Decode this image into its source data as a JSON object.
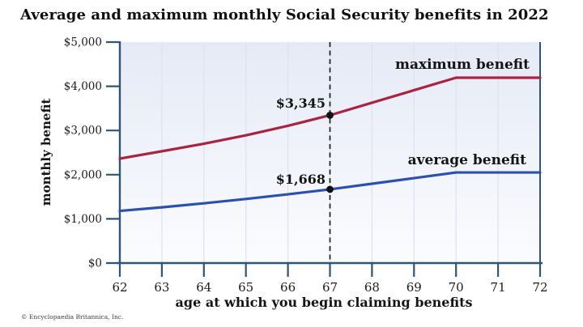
{
  "title": "Average and maximum monthly Social Security benefits in 2022",
  "credit": "© Encyclopaedia Britannica, Inc.",
  "colors": {
    "max_line": "#a82440",
    "avg_line": "#2d50ae",
    "axis": "#2f5574",
    "gridline": "#dce2f0",
    "plot_bg_top": "#e5eaf6",
    "plot_bg_bottom": "#fbfcfe",
    "dot": "#101010",
    "reference_line": "#1d1d1d"
  },
  "chart_data": {
    "type": "line",
    "title": "Average and maximum monthly Social Security benefits in 2022",
    "xlabel": "age at which you begin claiming benefits",
    "ylabel": "monthly benefit",
    "xlim": [
      62,
      72
    ],
    "ylim": [
      0,
      5000
    ],
    "grid": "vertical-only",
    "legend_position": "inline",
    "x": [
      62,
      63,
      64,
      65,
      66,
      67,
      68,
      69,
      70,
      71,
      72
    ],
    "x_tick_labels": [
      "62",
      "63",
      "64",
      "65",
      "66",
      "67",
      "68",
      "69",
      "70",
      "71",
      "72"
    ],
    "y_ticks": [
      {
        "value": 0,
        "label": "$0"
      },
      {
        "value": 1000,
        "label": "$1,000"
      },
      {
        "value": 2000,
        "label": "$2,000"
      },
      {
        "value": 3000,
        "label": "$3,000"
      },
      {
        "value": 4000,
        "label": "$4,000"
      },
      {
        "value": 5000,
        "label": "$5,000"
      }
    ],
    "series": [
      {
        "name": "maximum benefit",
        "color": "#a82440",
        "values": [
          2364,
          2530,
          2700,
          2890,
          3105,
          3345,
          3628,
          3911,
          4194,
          4194,
          4194
        ]
      },
      {
        "name": "average benefit",
        "color": "#2d50ae",
        "values": [
          1180,
          1262,
          1352,
          1450,
          1556,
          1668,
          1795,
          1922,
          2050,
          2050,
          2050
        ]
      }
    ],
    "annotations": [
      {
        "age": 67,
        "series": "maximum benefit",
        "value": 3345,
        "label": "$3,345"
      },
      {
        "age": 67,
        "series": "average benefit",
        "value": 1668,
        "label": "$1,668"
      }
    ],
    "reference_line": {
      "x": 67,
      "style": "dashed"
    }
  }
}
